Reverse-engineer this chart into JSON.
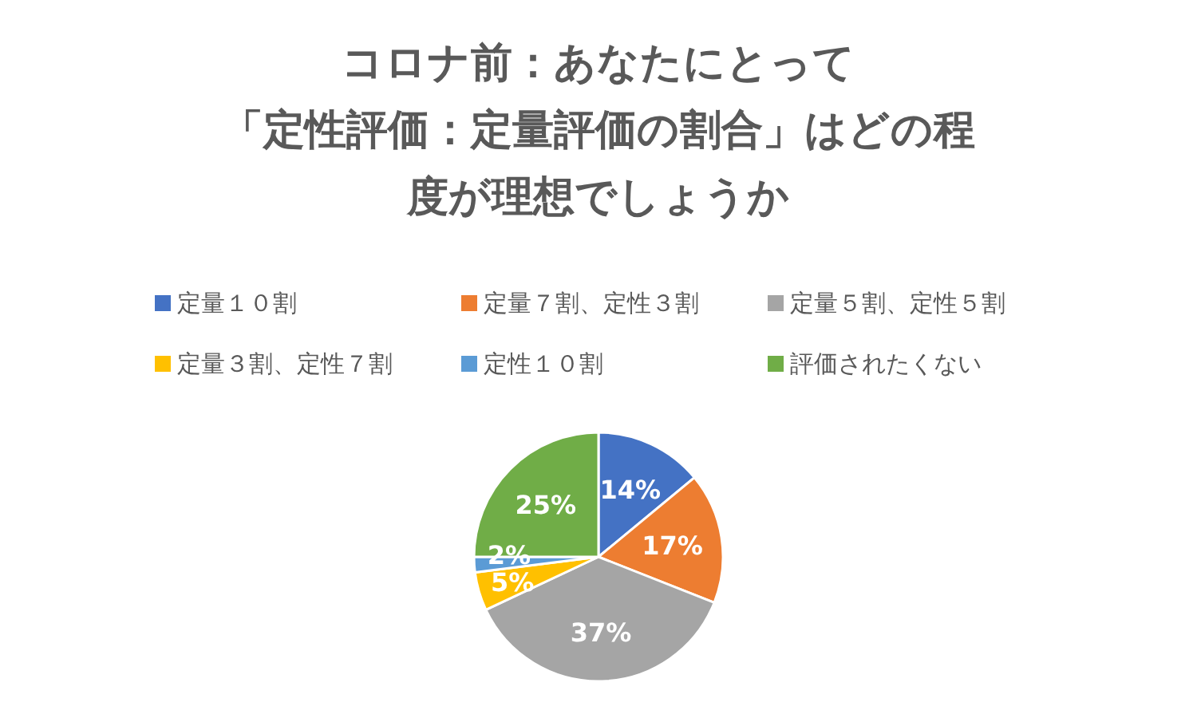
{
  "chart_data": {
    "type": "pie",
    "title": "コロナ前：あなたにとって「定性評価：定量評価の割合」はどの程度が理想でしょうか",
    "categories": [
      "定量１０割",
      "定量７割、定性３割",
      "定量５割、定性５割",
      "定量３割、定性７割",
      "定性１０割",
      "評価されたくない"
    ],
    "values": [
      14,
      17,
      37,
      5,
      2,
      25
    ],
    "colors": [
      "#4472c4",
      "#ed7d31",
      "#a5a5a5",
      "#ffc000",
      "#5b9bd5",
      "#70ad47"
    ],
    "value_labels": [
      "14%",
      "17%",
      "37%",
      "5%",
      "2%",
      "25%"
    ],
    "legend": "top"
  }
}
